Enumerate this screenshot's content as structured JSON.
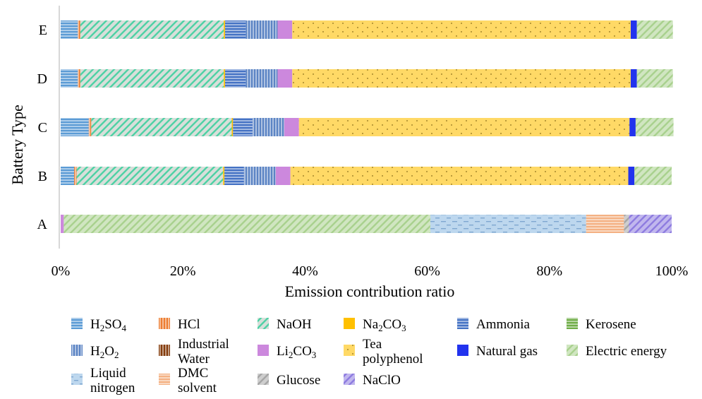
{
  "chart_data": {
    "type": "bar",
    "orientation": "horizontal",
    "stacked": true,
    "normalized": true,
    "title": "",
    "xlabel": "Emission contribution ratio",
    "ylabel": "Battery Type",
    "xlim": [
      0,
      100
    ],
    "xticks": [
      "0%",
      "20%",
      "40%",
      "60%",
      "80%",
      "100%"
    ],
    "categories": [
      "A",
      "B",
      "C",
      "D",
      "E"
    ],
    "legend_position": "bottom",
    "series": [
      {
        "name": "H2SO4",
        "label": [
          "H",
          "2",
          "SO",
          "4"
        ],
        "color": "#5B9BD5",
        "pattern": "hlines",
        "values": [
          0,
          2.2,
          4.6,
          2.8,
          2.8
        ]
      },
      {
        "name": "HCl",
        "label": [
          "HCl"
        ],
        "color": "#ED7D31",
        "pattern": "vlines",
        "values": [
          0,
          0.4,
          0.4,
          0.4,
          0.4
        ]
      },
      {
        "name": "NaOH",
        "label": [
          "NaOH"
        ],
        "color": "#B8C4BC",
        "pattern": "diag",
        "values": [
          0,
          24,
          23,
          23.5,
          23.5
        ]
      },
      {
        "name": "Na2CO3",
        "label": [
          "Na",
          "2",
          "CO",
          "3"
        ],
        "color": "#FFC000",
        "pattern": "solid",
        "values": [
          0,
          0.2,
          0.2,
          0.2,
          0.2
        ]
      },
      {
        "name": "Ammonia",
        "label": [
          "Ammonia"
        ],
        "color": "#4472C4",
        "pattern": "hlines",
        "values": [
          0,
          3.2,
          3.2,
          3.4,
          3.4
        ]
      },
      {
        "name": "Kerosene",
        "label": [
          "Kerosene"
        ],
        "color": "#70AD47",
        "pattern": "hlines",
        "values": [
          0,
          0,
          0,
          0,
          0
        ]
      },
      {
        "name": "H2O2",
        "label": [
          "H",
          "2",
          "O",
          "2"
        ],
        "color": "#5B84C4",
        "pattern": "vlines",
        "values": [
          0,
          5.2,
          5.2,
          5.2,
          5.2
        ]
      },
      {
        "name": "Industrial Water",
        "label": [
          "Industrial",
          "Water"
        ],
        "color": "#843C0C",
        "pattern": "vlines",
        "values": [
          0,
          0,
          0,
          0,
          0
        ]
      },
      {
        "name": "Li2CO3",
        "label": [
          "Li",
          "2",
          "CO",
          "3"
        ],
        "color": "#CC88DD",
        "pattern": "solid",
        "values": [
          0.5,
          2.4,
          2.4,
          2.4,
          2.4
        ]
      },
      {
        "name": "Tea polyphenol",
        "label": [
          "Tea",
          "polyphenol"
        ],
        "color": "#FFD966",
        "pattern": "dots",
        "values": [
          0,
          55.3,
          54.1,
          55.4,
          55.4
        ]
      },
      {
        "name": "Natural gas",
        "label": [
          "Natural gas"
        ],
        "color": "#2233EE",
        "pattern": "solid",
        "values": [
          0,
          1.0,
          1.0,
          1.0,
          1.0
        ]
      },
      {
        "name": "Electric energy",
        "label": [
          "Electric energy"
        ],
        "color": "#A9D18E",
        "pattern": "diag",
        "values": [
          60,
          6.1,
          6.2,
          5.9,
          5.9
        ]
      },
      {
        "name": "Liquid nitrogen",
        "label": [
          "Liquid",
          "nitrogen"
        ],
        "color": "#BDD7EE",
        "pattern": "dashes",
        "values": [
          25.5,
          0,
          0,
          0,
          0
        ]
      },
      {
        "name": "DMC solvent",
        "label": [
          "DMC",
          "solvent"
        ],
        "color": "#F4B183",
        "pattern": "hlines",
        "values": [
          6.2,
          0,
          0,
          0,
          0
        ]
      },
      {
        "name": "Glucose",
        "label": [
          "Glucose"
        ],
        "color": "#A6A6A6",
        "pattern": "diag",
        "values": [
          0.8,
          0,
          0,
          0,
          0
        ]
      },
      {
        "name": "NaClO",
        "label": [
          "NaClO"
        ],
        "color": "#8E7CE0",
        "pattern": "diag",
        "values": [
          7.0,
          0,
          0,
          0,
          0
        ]
      }
    ]
  }
}
